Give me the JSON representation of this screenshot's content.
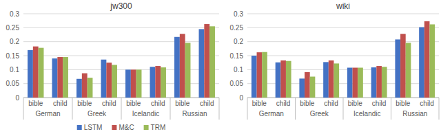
{
  "chart_data": [
    {
      "type": "bar",
      "title": "jw300",
      "categories": [
        "bible",
        "child",
        "bible",
        "child",
        "bible",
        "child",
        "bible",
        "child"
      ],
      "category_groups": [
        "German",
        "Greek",
        "Icelandic",
        "Russian"
      ],
      "series": [
        {
          "name": "LSTM",
          "color": "#4472c4",
          "values": [
            0.17,
            0.14,
            0.067,
            0.136,
            0.1,
            0.11,
            0.217,
            0.245
          ]
        },
        {
          "name": "M&C",
          "color": "#c0504d",
          "values": [
            0.183,
            0.145,
            0.087,
            0.125,
            0.1,
            0.113,
            0.228,
            0.263
          ]
        },
        {
          "name": "TRM",
          "color": "#9bbb59",
          "values": [
            0.178,
            0.145,
            0.071,
            0.117,
            0.1,
            0.108,
            0.196,
            0.255
          ]
        }
      ],
      "ylim": [
        0,
        0.3
      ],
      "yticks": [
        0,
        0.05,
        0.1,
        0.15,
        0.2,
        0.25,
        0.3
      ],
      "grid": true,
      "legend": "bottom"
    },
    {
      "type": "bar",
      "title": "wiki",
      "categories": [
        "bible",
        "child",
        "bible",
        "child",
        "bible",
        "child",
        "bible",
        "child"
      ],
      "category_groups": [
        "German",
        "Greek",
        "Icelandic",
        "Russian"
      ],
      "series": [
        {
          "color": "#4472c4",
          "values": [
            0.15,
            0.126,
            0.068,
            0.127,
            0.107,
            0.108,
            0.208,
            0.252
          ]
        },
        {
          "color": "#c0504d",
          "values": [
            0.162,
            0.133,
            0.091,
            0.133,
            0.107,
            0.113,
            0.228,
            0.273
          ]
        },
        {
          "color": "#9bbb59",
          "values": [
            0.163,
            0.131,
            0.075,
            0.122,
            0.107,
            0.11,
            0.196,
            0.262
          ]
        }
      ],
      "ylim": [
        0,
        0.3
      ],
      "yticks": [
        0,
        0.05,
        0.1,
        0.15,
        0.2,
        0.25,
        0.3
      ],
      "grid": true
    }
  ]
}
